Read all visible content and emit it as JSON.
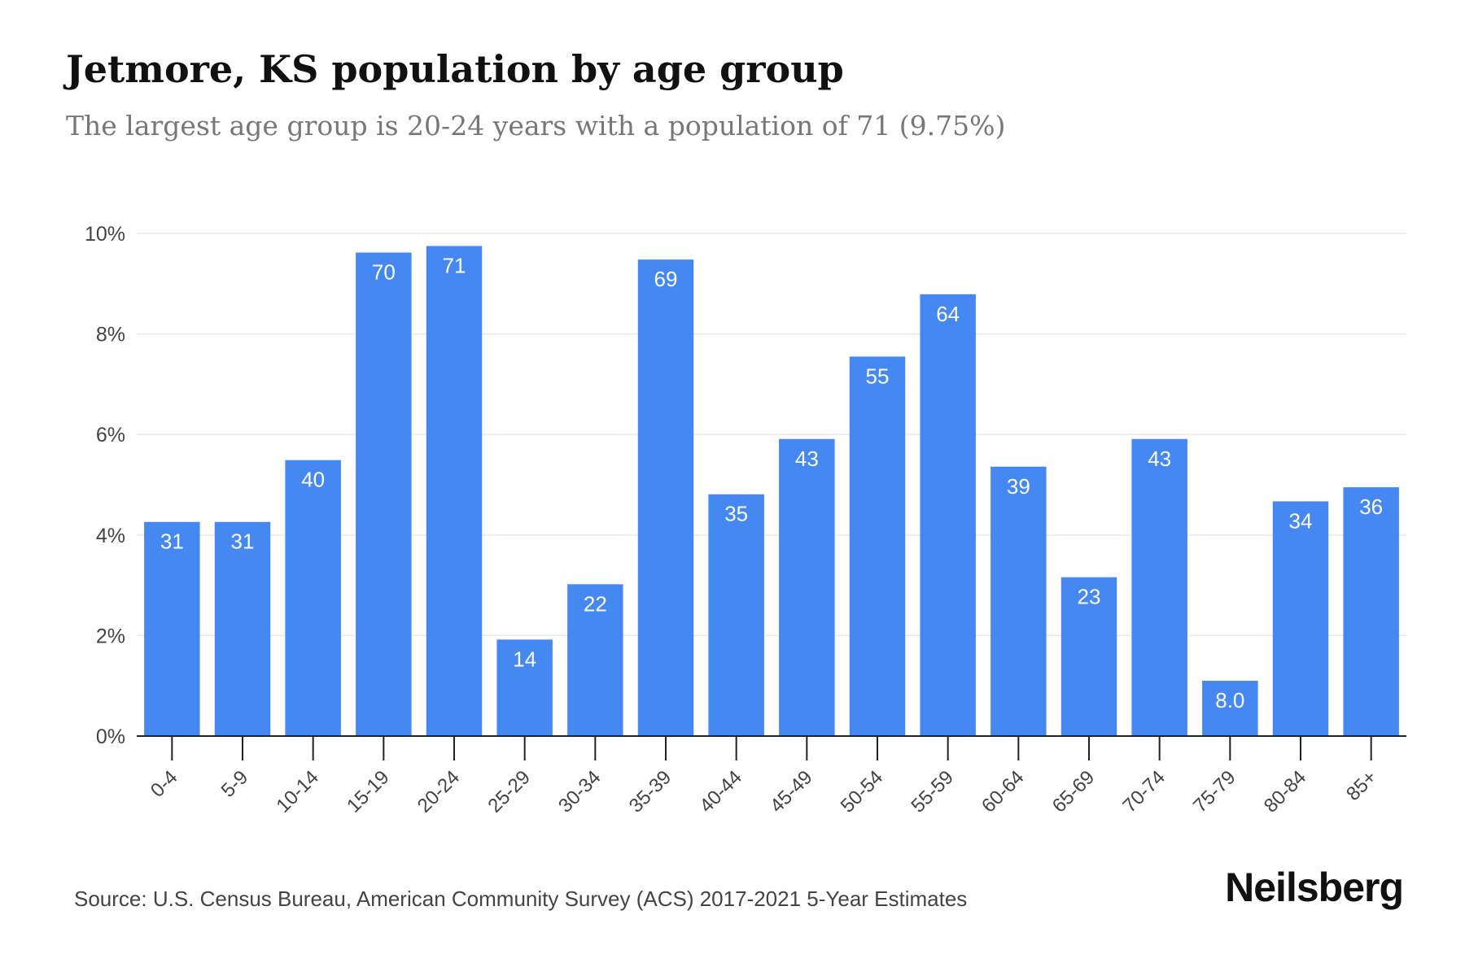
{
  "header": {
    "title": "Jetmore, KS population by age group",
    "subtitle": "The largest age group is 20-24 years with a population of 71 (9.75%)"
  },
  "footer": {
    "source": "Source: U.S. Census Bureau, American Community Survey (ACS) 2017-2021 5-Year Estimates",
    "brand": "Neilsberg"
  },
  "colors": {
    "bar": "#4688F1",
    "bar_label": "#ffffff",
    "grid": "#e9e9e9",
    "axis": "#222222",
    "tick_label": "#444444"
  },
  "chart_data": {
    "type": "bar",
    "title": "Jetmore, KS population by age group",
    "xlabel": "",
    "ylabel": "",
    "ylim": [
      0,
      10
    ],
    "y_ticks": [
      0,
      2,
      4,
      6,
      8,
      10
    ],
    "y_tick_labels": [
      "0%",
      "2%",
      "4%",
      "6%",
      "8%",
      "10%"
    ],
    "grid": true,
    "legend": "none",
    "categories": [
      "0-4",
      "5-9",
      "10-14",
      "15-19",
      "20-24",
      "25-29",
      "30-34",
      "35-39",
      "40-44",
      "45-49",
      "50-54",
      "55-59",
      "60-64",
      "65-69",
      "70-74",
      "75-79",
      "80-84",
      "85+"
    ],
    "values": [
      4.26,
      4.26,
      5.49,
      9.62,
      9.75,
      1.92,
      3.02,
      9.48,
      4.81,
      5.91,
      7.55,
      8.79,
      5.36,
      3.16,
      5.91,
      1.1,
      4.67,
      4.95
    ],
    "data_labels": [
      "31",
      "31",
      "40",
      "70",
      "71",
      "14",
      "22",
      "69",
      "35",
      "43",
      "55",
      "64",
      "39",
      "23",
      "43",
      "8.0",
      "34",
      "36"
    ]
  }
}
